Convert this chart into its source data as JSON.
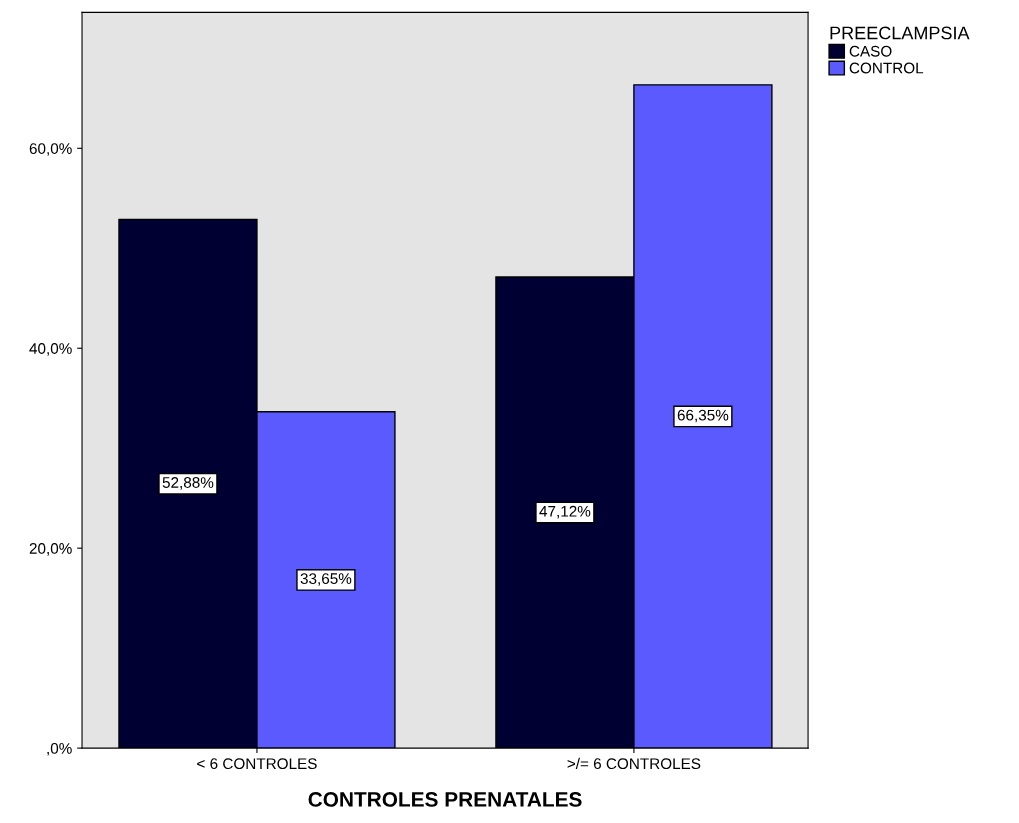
{
  "chart_data": {
    "type": "bar",
    "xlabel": "CONTROLES PRENATALES",
    "legend_title": "PREECLAMPSIA",
    "categories": [
      "< 6 CONTROLES",
      ">/= 6 CONTROLES"
    ],
    "series": [
      {
        "name": "CASO",
        "color": "#000033",
        "values": [
          52.88,
          47.12
        ],
        "value_labels": [
          "52,88%",
          "47,12%"
        ]
      },
      {
        "name": "CONTROL",
        "color": "#5a5aff",
        "values": [
          33.65,
          66.35
        ],
        "value_labels": [
          "33,65%",
          "66,35%"
        ]
      }
    ],
    "ylim": [
      0,
      73.6
    ],
    "yticks": [
      {
        "value": 0,
        "label": ",0%"
      },
      {
        "value": 20,
        "label": "20,0%"
      },
      {
        "value": 40,
        "label": "40,0%"
      },
      {
        "value": 60,
        "label": "60,0%"
      }
    ],
    "grid": false,
    "legend": "top right"
  }
}
